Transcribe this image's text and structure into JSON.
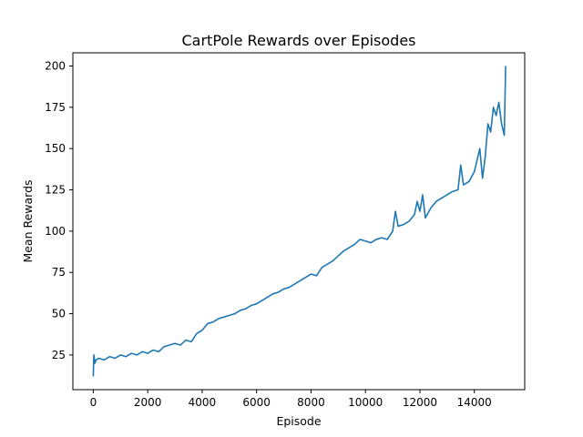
{
  "chart_data": {
    "type": "line",
    "title": "CartPole Rewards over Episodes",
    "xlabel": "Episode",
    "ylabel": "Mean Rewards",
    "xlim": [
      -750,
      15850
    ],
    "ylim": [
      4,
      208
    ],
    "x_ticks": [
      0,
      2000,
      4000,
      6000,
      8000,
      10000,
      12000,
      14000
    ],
    "y_ticks": [
      25,
      50,
      75,
      100,
      125,
      150,
      175,
      200
    ],
    "grid": false,
    "legend": "none",
    "color": "#1f77b4",
    "series": [
      {
        "x": [
          0,
          20,
          60,
          100,
          200,
          400,
          600,
          800,
          1000,
          1200,
          1400,
          1600,
          1800,
          2000,
          2200,
          2400,
          2600,
          2800,
          3000,
          3200,
          3400,
          3600,
          3800,
          4000,
          4200,
          4400,
          4600,
          4800,
          5000,
          5200,
          5400,
          5600,
          5800,
          6000,
          6200,
          6400,
          6600,
          6800,
          7000,
          7200,
          7400,
          7600,
          7800,
          8000,
          8200,
          8400,
          8600,
          8800,
          9000,
          9200,
          9400,
          9600,
          9800,
          10000,
          10200,
          10400,
          10600,
          10800,
          11000,
          11100,
          11200,
          11400,
          11600,
          11800,
          11900,
          12000,
          12100,
          12200,
          12400,
          12600,
          12800,
          13000,
          13200,
          13400,
          13500,
          13600,
          13800,
          14000,
          14200,
          14300,
          14400,
          14500,
          14600,
          14700,
          14800,
          14900,
          15000,
          15100,
          15150
        ],
        "y": [
          12,
          25,
          20,
          22,
          23,
          22,
          24,
          23,
          25,
          24,
          26,
          25,
          27,
          26,
          28,
          27,
          30,
          31,
          32,
          31,
          34,
          33,
          38,
          40,
          44,
          45,
          47,
          48,
          49,
          50,
          52,
          53,
          55,
          56,
          58,
          60,
          62,
          63,
          65,
          66,
          68,
          70,
          72,
          74,
          73,
          78,
          80,
          82,
          85,
          88,
          90,
          92,
          95,
          94,
          93,
          95,
          96,
          95,
          100,
          112,
          103,
          104,
          106,
          110,
          118,
          112,
          122,
          108,
          114,
          118,
          120,
          122,
          124,
          125,
          140,
          128,
          130,
          136,
          150,
          132,
          145,
          165,
          160,
          175,
          170,
          178,
          165,
          158,
          200
        ]
      }
    ]
  }
}
